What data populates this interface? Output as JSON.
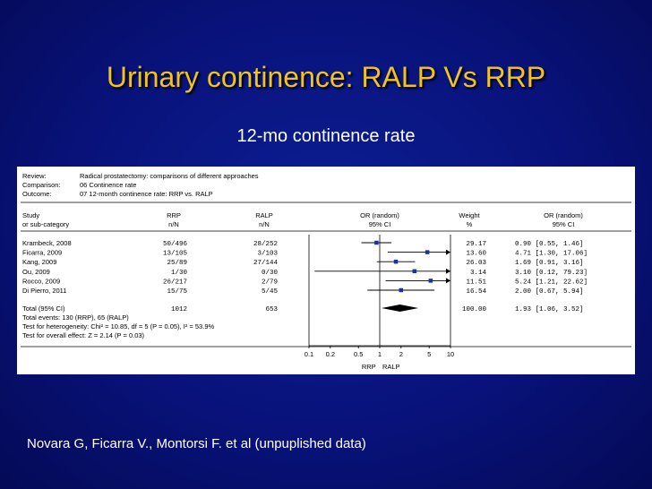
{
  "slide": {
    "title": "Urinary continence: RALP Vs RRP",
    "subtitle": "12-mo continence rate",
    "footer": "Novara G, Ficarra V., Montorsi F. et al (unpuplished data)"
  },
  "meta": {
    "review_label": "Review:",
    "review_value": "Radical prostatectomy: comparisons of different approaches",
    "comparison_label": "Comparison:",
    "comparison_value": "06 Continence rate",
    "outcome_label": "Outcome:",
    "outcome_value": "07 12-month continence rate: RRP vs. RALP"
  },
  "headers": {
    "study_1": "Study",
    "study_2": "or sub-category",
    "rrp_1": "RRP",
    "rrp_2": "n/N",
    "ralp_1": "RALP",
    "ralp_2": "n/N",
    "or_1": "OR (random)",
    "or_2": "95% CI",
    "weight_1": "Weight",
    "weight_2": "%",
    "ci_1": "OR (random)",
    "ci_2": "95% CI"
  },
  "total": {
    "label": "Total (95% CI)",
    "rrp": "1012",
    "ralp": "653",
    "weight": "100.00",
    "or_text": "1.93 [1.06, 3.52]",
    "events": "Total events: 130 (RRP), 65 (RALP)",
    "heterogeneity": "Test for heterogeneity: Chi² = 10.85, df = 5 (P = 0.05), I² = 53.9%",
    "overall": "Test for overall effect: Z = 2.14 (P = 0.03)"
  },
  "axis_labels": {
    "left": "RRP",
    "right": "RALP"
  },
  "colors": {
    "marker": "#1f2fa0",
    "ink": "#000000",
    "title": "#f0c41a"
  },
  "chart_data": {
    "type": "scatter",
    "subtype": "forest-plot",
    "scale": "log",
    "xlim": [
      0.1,
      10
    ],
    "ticks": [
      "0.1",
      "0.2",
      "0.5",
      "1",
      "2",
      "5",
      "10"
    ],
    "reference_line": 1,
    "studies": [
      {
        "name": "Krambeck, 2008",
        "rrp": "50/496",
        "ralp": "28/252",
        "weight": "29.17",
        "or_text": "0.90 [0.55, 1.46]",
        "or": 0.9,
        "lo": 0.55,
        "hi": 1.46
      },
      {
        "name": "Ficarra, 2009",
        "rrp": "13/105",
        "ralp": "3/103",
        "weight": "13.60",
        "or_text": "4.71 [1.30, 17.06]",
        "or": 4.71,
        "lo": 1.3,
        "hi": 17.06
      },
      {
        "name": "Kang, 2009",
        "rrp": "25/89",
        "ralp": "27/144",
        "weight": "26.03",
        "or_text": "1.69 [0.91, 3.16]",
        "or": 1.69,
        "lo": 0.91,
        "hi": 3.16
      },
      {
        "name": "Ou, 2009",
        "rrp": "1/30",
        "ralp": "0/30",
        "weight": "3.14",
        "or_text": "3.10 [0.12, 79.23]",
        "or": 3.1,
        "lo": 0.12,
        "hi": 79.23
      },
      {
        "name": "Rocco, 2009",
        "rrp": "26/217",
        "ralp": "2/79",
        "weight": "11.51",
        "or_text": "5.24 [1.21, 22.62]",
        "or": 5.24,
        "lo": 1.21,
        "hi": 22.62
      },
      {
        "name": "Di Pierro, 2011",
        "rrp": "15/75",
        "ralp": "5/45",
        "weight": "16.54",
        "or_text": "2.00 [0.67, 5.94]",
        "or": 2.0,
        "lo": 0.67,
        "hi": 5.94
      }
    ],
    "pooled": {
      "or": 1.93,
      "lo": 1.06,
      "hi": 3.52
    }
  }
}
